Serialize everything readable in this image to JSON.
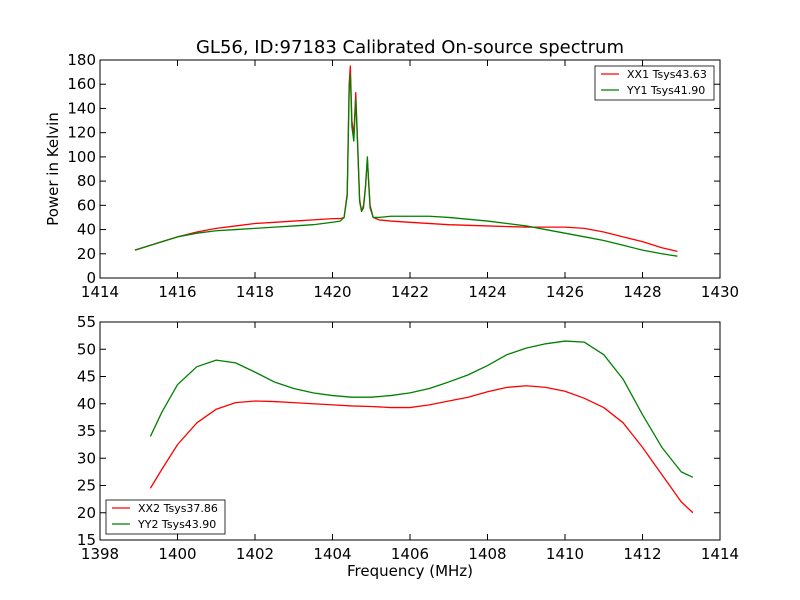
{
  "chart_data": [
    {
      "type": "line",
      "title": "GL56, ID:97183 Calibrated On-source spectrum",
      "xlabel": "",
      "ylabel": "Power in Kelvin",
      "xlim": [
        1414,
        1430
      ],
      "ylim": [
        0,
        180
      ],
      "xticks": [
        1414,
        1416,
        1418,
        1420,
        1422,
        1424,
        1426,
        1428,
        1430
      ],
      "yticks": [
        0,
        20,
        40,
        60,
        80,
        100,
        120,
        140,
        160,
        180
      ],
      "legend_position": "top-right",
      "grid": false,
      "series": [
        {
          "name": "XX1 Tsys43.63",
          "color": "#ff0000",
          "x": [
            1414.9,
            1415.5,
            1416.0,
            1416.5,
            1417.0,
            1417.5,
            1418.0,
            1418.5,
            1419.0,
            1419.5,
            1420.0,
            1420.2,
            1420.3,
            1420.38,
            1420.43,
            1420.46,
            1420.5,
            1420.55,
            1420.6,
            1420.65,
            1420.7,
            1420.75,
            1420.8,
            1420.85,
            1420.9,
            1420.93,
            1420.97,
            1421.05,
            1421.2,
            1421.5,
            1422.0,
            1423.0,
            1424.0,
            1425.0,
            1426.0,
            1426.5,
            1427.0,
            1427.5,
            1428.0,
            1428.5,
            1428.9
          ],
          "y": [
            23,
            29,
            34,
            38,
            41,
            43,
            45,
            46,
            47,
            48,
            49,
            49,
            50,
            70,
            160,
            175,
            130,
            118,
            153,
            110,
            65,
            55,
            60,
            75,
            98,
            82,
            60,
            50,
            48,
            47,
            46,
            44,
            43,
            42,
            42,
            41,
            38,
            34,
            30,
            25,
            22
          ]
        },
        {
          "name": "YY1 Tsys41.90",
          "color": "#008000",
          "x": [
            1414.9,
            1415.5,
            1416.0,
            1416.5,
            1417.0,
            1417.5,
            1418.0,
            1418.5,
            1419.0,
            1419.5,
            1420.0,
            1420.2,
            1420.3,
            1420.38,
            1420.43,
            1420.46,
            1420.5,
            1420.55,
            1420.6,
            1420.65,
            1420.7,
            1420.75,
            1420.8,
            1420.85,
            1420.9,
            1420.93,
            1420.97,
            1421.05,
            1421.2,
            1421.5,
            1422.0,
            1422.5,
            1423.0,
            1424.0,
            1425.0,
            1425.5,
            1426.0,
            1426.5,
            1427.0,
            1427.5,
            1428.0,
            1428.5,
            1428.9
          ],
          "y": [
            23,
            29,
            34,
            37,
            39,
            40,
            41,
            42,
            43,
            44,
            46,
            47,
            50,
            68,
            155,
            168,
            125,
            113,
            148,
            108,
            63,
            55,
            58,
            74,
            100,
            80,
            58,
            50,
            50,
            51,
            51,
            51,
            50,
            47,
            43,
            40,
            37,
            34,
            31,
            27,
            23,
            20,
            18
          ]
        }
      ]
    },
    {
      "type": "line",
      "title": "",
      "xlabel": "Frequency (MHz)",
      "ylabel": "",
      "xlim": [
        1398,
        1414
      ],
      "ylim": [
        15,
        55
      ],
      "xticks": [
        1398,
        1400,
        1402,
        1404,
        1406,
        1408,
        1410,
        1412,
        1414
      ],
      "yticks": [
        15,
        20,
        25,
        30,
        35,
        40,
        45,
        50,
        55
      ],
      "legend_position": "bottom-left",
      "grid": false,
      "series": [
        {
          "name": "XX2 Tsys37.86",
          "color": "#ff0000",
          "x": [
            1399.3,
            1399.6,
            1400.0,
            1400.5,
            1401.0,
            1401.5,
            1402.0,
            1402.5,
            1403.0,
            1403.5,
            1404.0,
            1404.5,
            1405.0,
            1405.5,
            1406.0,
            1406.5,
            1407.0,
            1407.5,
            1408.0,
            1408.5,
            1409.0,
            1409.5,
            1410.0,
            1410.5,
            1411.0,
            1411.5,
            1412.0,
            1412.5,
            1413.0,
            1413.3
          ],
          "y": [
            24.5,
            28,
            32.5,
            36.5,
            39,
            40.2,
            40.5,
            40.4,
            40.2,
            40,
            39.8,
            39.6,
            39.5,
            39.3,
            39.3,
            39.8,
            40.5,
            41.2,
            42.2,
            43,
            43.3,
            43,
            42.3,
            41,
            39.3,
            36.5,
            32,
            27,
            22,
            20
          ]
        },
        {
          "name": "YY2 Tsys43.90",
          "color": "#008000",
          "x": [
            1399.3,
            1399.6,
            1400.0,
            1400.5,
            1401.0,
            1401.5,
            1402.0,
            1402.5,
            1403.0,
            1403.5,
            1404.0,
            1404.5,
            1405.0,
            1405.5,
            1406.0,
            1406.5,
            1407.0,
            1407.5,
            1408.0,
            1408.5,
            1409.0,
            1409.5,
            1410.0,
            1410.5,
            1411.0,
            1411.5,
            1412.0,
            1412.5,
            1413.0,
            1413.3
          ],
          "y": [
            34,
            38.5,
            43.5,
            46.8,
            48,
            47.5,
            45.8,
            44,
            42.8,
            42,
            41.5,
            41.2,
            41.2,
            41.5,
            42,
            42.8,
            44,
            45.3,
            47,
            49,
            50.2,
            51,
            51.5,
            51.3,
            49,
            44.5,
            38,
            32,
            27.5,
            26.5
          ]
        }
      ]
    }
  ]
}
